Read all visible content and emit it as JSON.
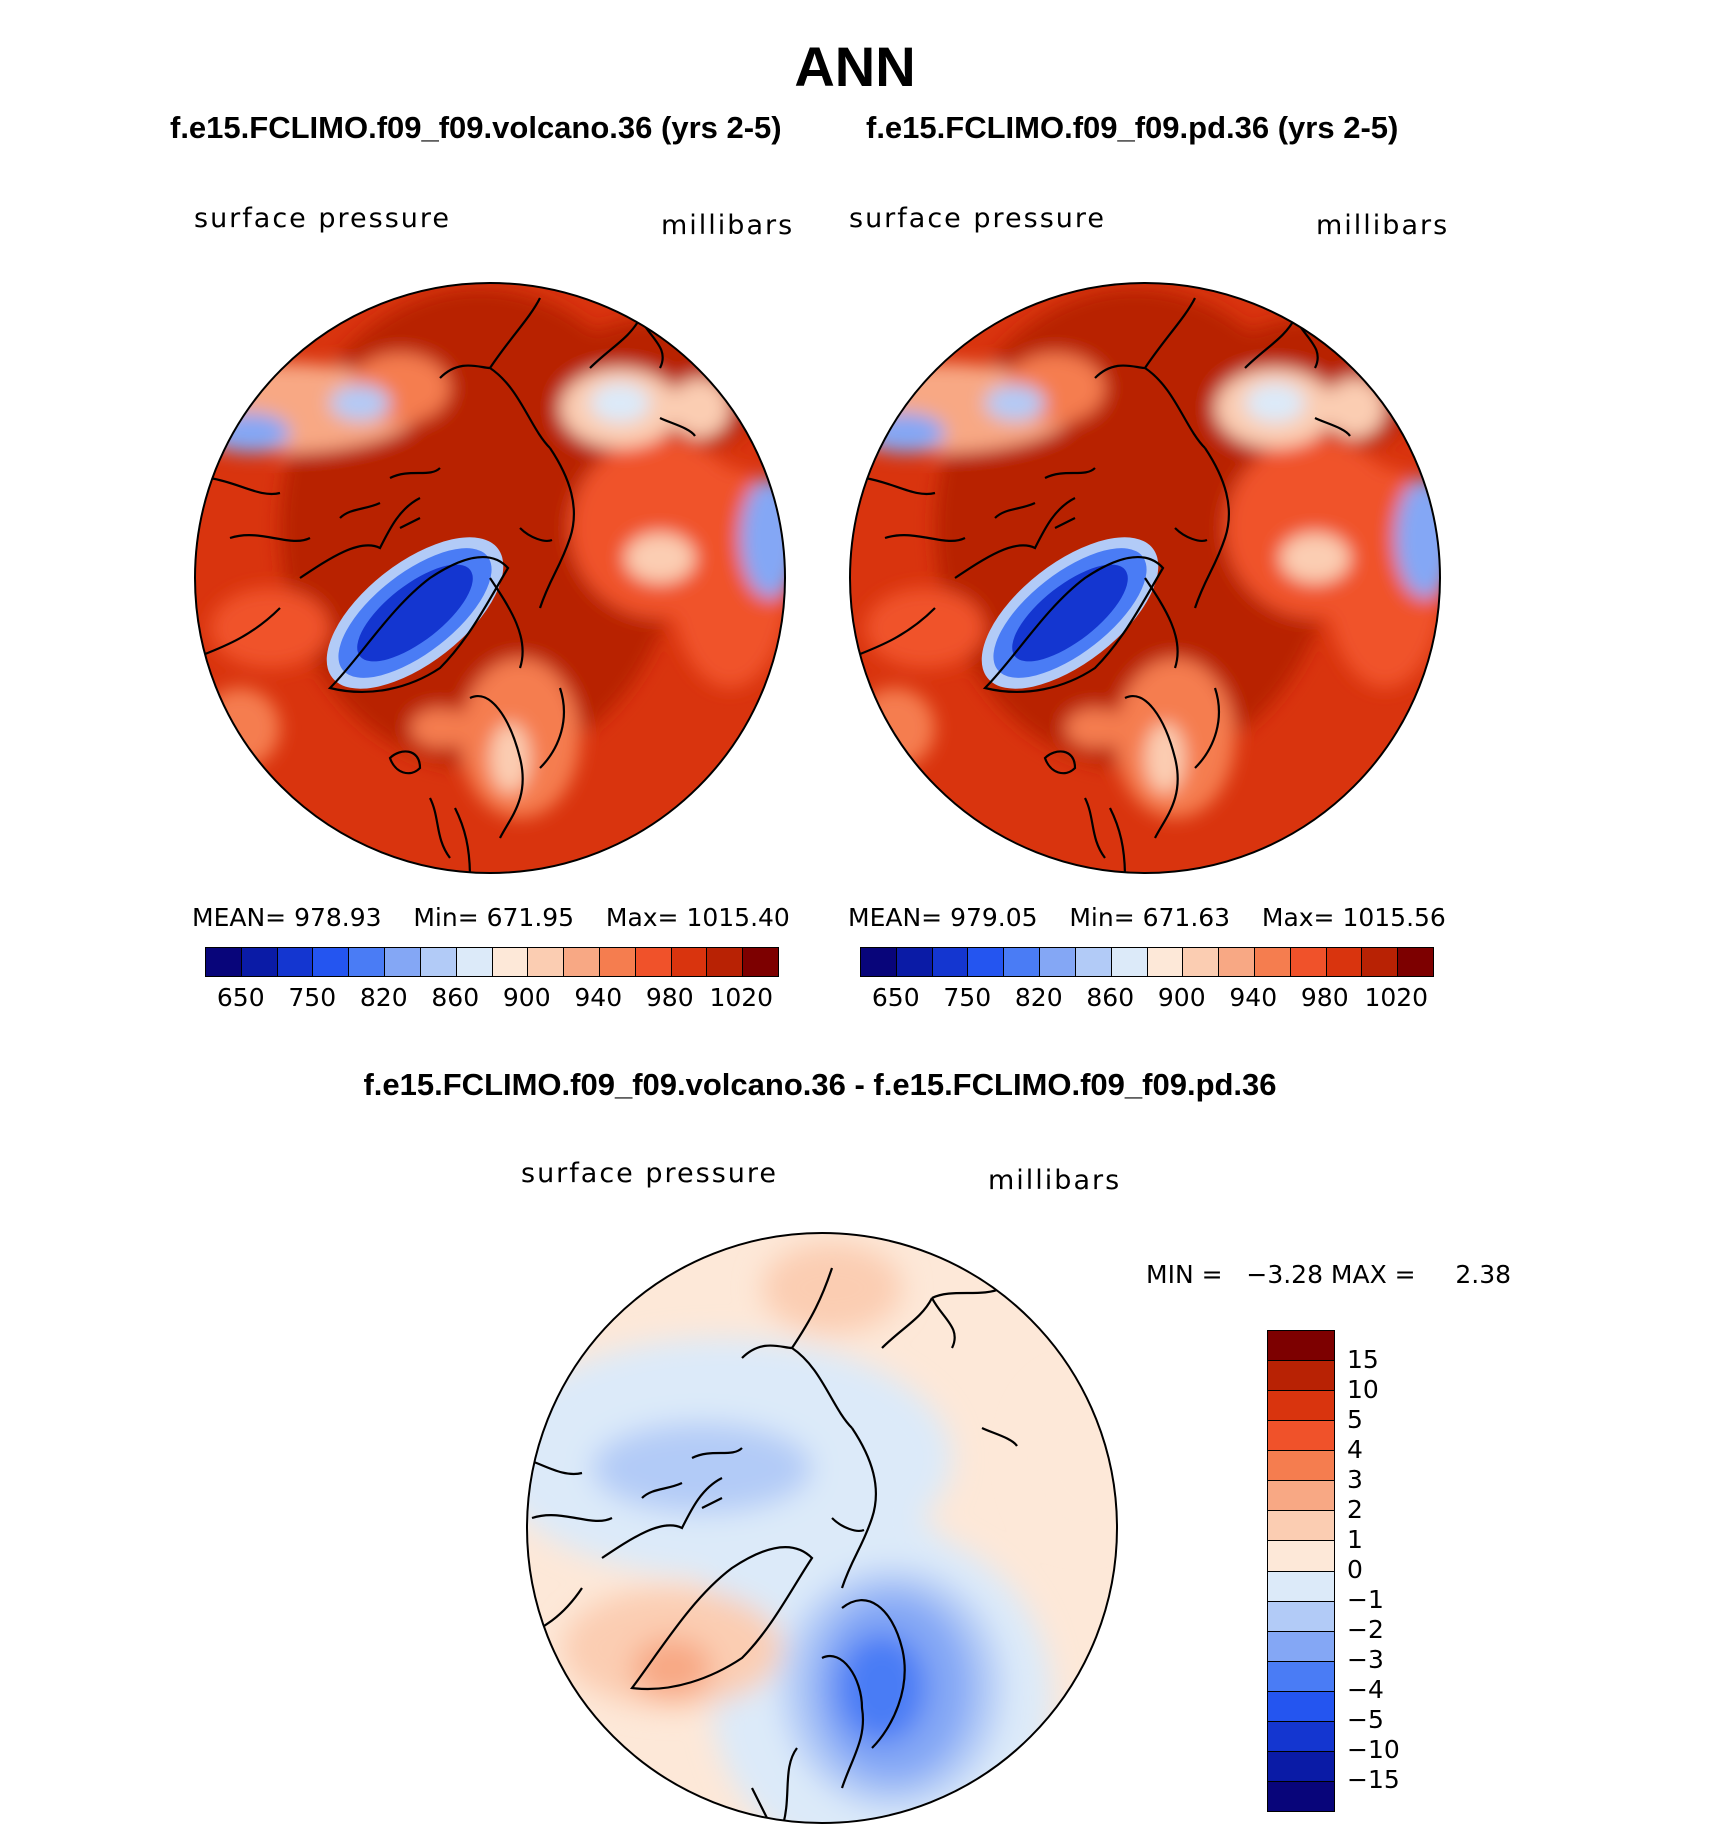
{
  "title": "ANN",
  "panels": [
    {
      "case": "f.e15.FCLIMO.f09_f09.volcano.36 (yrs 2-5)",
      "variable": "surface pressure",
      "units": "millibars",
      "stats": {
        "mean": "MEAN= 978.93",
        "min": "Min= 671.95",
        "max": "Max= 1015.40"
      }
    },
    {
      "case": "f.e15.FCLIMO.f09_f09.pd.36 (yrs 2-5)",
      "variable": "surface pressure",
      "units": "millibars",
      "stats": {
        "mean": "MEAN= 979.05",
        "min": "Min= 671.63",
        "max": "Max= 1015.56"
      }
    }
  ],
  "diff_panel": {
    "title": "f.e15.FCLIMO.f09_f09.volcano.36 - f.e15.FCLIMO.f09_f09.pd.36",
    "variable": "surface pressure",
    "units": "millibars",
    "minmax": "MIN =   −3.28 MAX =     2.38"
  },
  "colorbar_abs": {
    "colors": [
      "#08057a",
      "#0a1ba6",
      "#1436d0",
      "#2455f0",
      "#4a7cf5",
      "#84a7f5",
      "#b2cbf7",
      "#dceaf9",
      "#fde8d8",
      "#fbcdb2",
      "#f8a884",
      "#f57d4f",
      "#f0522a",
      "#d9340e",
      "#b82204",
      "#7d0000"
    ],
    "labels": [
      "650",
      "750",
      "820",
      "860",
      "900",
      "940",
      "980",
      "1020"
    ]
  },
  "colorbar_diff": {
    "colors": [
      "#7d0000",
      "#b82204",
      "#d9340e",
      "#f0522a",
      "#f57d4f",
      "#f8a884",
      "#fbcdb2",
      "#fde8d8",
      "#dceaf9",
      "#b2cbf7",
      "#84a7f5",
      "#4a7cf5",
      "#2455f0",
      "#1436d0",
      "#0a1ba6",
      "#08057a"
    ],
    "labels": [
      "15",
      "10",
      "5",
      "4",
      "3",
      "2",
      "1",
      "0",
      "−1",
      "−2",
      "−3",
      "−4",
      "−5",
      "−10",
      "−15"
    ]
  }
}
